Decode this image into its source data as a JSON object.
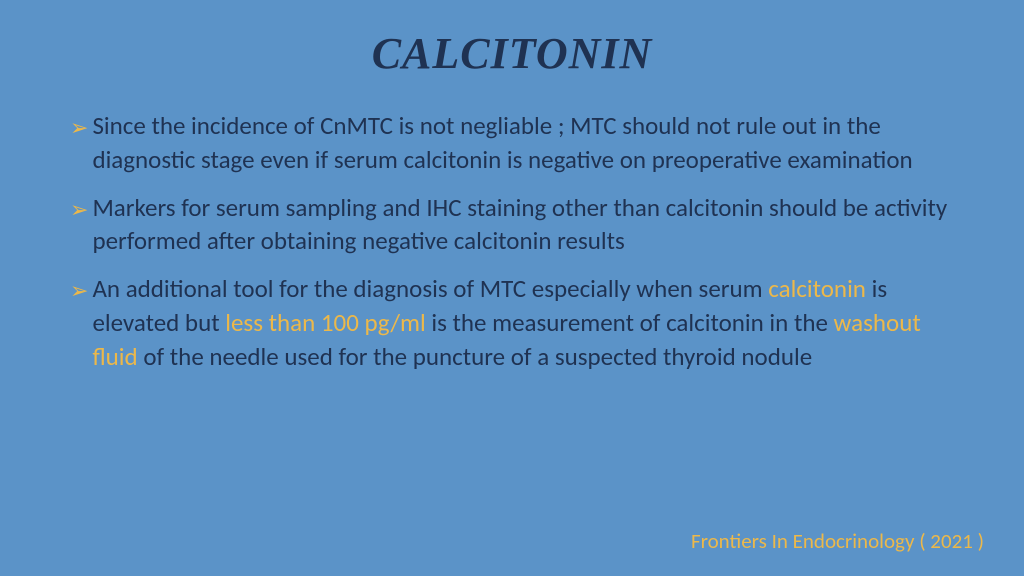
{
  "slide": {
    "title": "CALCITONIN",
    "background_color": "#5b93c8",
    "title_color": "#1f3252",
    "title_fontsize": 44,
    "title_font_family": "Times New Roman",
    "title_font_style": "bold italic",
    "body_color": "#1f3252",
    "body_fontsize": 25,
    "highlight_color": "#ecb84a",
    "bullet_arrow_color": "#ecb84a",
    "bullets": [
      {
        "segments": [
          {
            "text": "Since the incidence of CnMTC is not negliable ; MTC should not rule out in the diagnostic stage even if serum calcitonin is negative on preoperative examination",
            "highlight": false
          }
        ]
      },
      {
        "segments": [
          {
            "text": "Markers for serum sampling and IHC staining other than calcitonin should be activity performed after obtaining negative calcitonin results",
            "highlight": false
          }
        ]
      },
      {
        "segments": [
          {
            "text": "An additional tool for the diagnosis of MTC especially when serum ",
            "highlight": false
          },
          {
            "text": "calcitonin",
            "highlight": true
          },
          {
            "text": " is elevated but ",
            "highlight": false
          },
          {
            "text": "less than 100 pg/ml",
            "highlight": true
          },
          {
            "text": " is the measurement of calcitonin in the ",
            "highlight": false
          },
          {
            "text": "washout fluid",
            "highlight": true
          },
          {
            "text": " of the needle used for the puncture of a suspected thyroid nodule",
            "highlight": false
          }
        ]
      }
    ],
    "citation": "Frontiers In Endocrinology ( 2021 )",
    "citation_color": "#ecb84a",
    "citation_fontsize": 21
  }
}
